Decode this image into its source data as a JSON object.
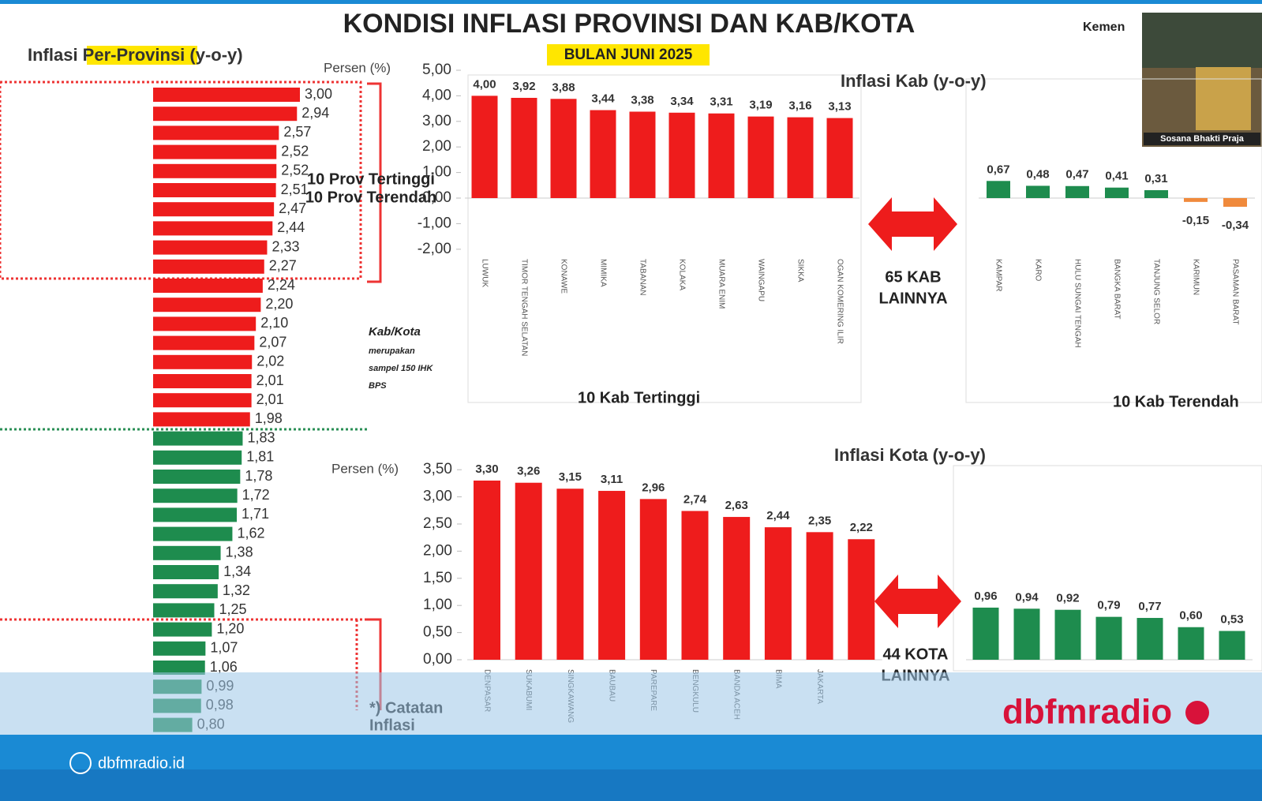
{
  "header": {
    "title": "KONDISI INFLASI PROVINSI DAN KAB/KOTA",
    "subtitle": "BULAN JUNI 2025",
    "corner": "Kemen",
    "webcam_caption": "Sosana Bhakti Praja"
  },
  "chart_data": [
    {
      "type": "hbar",
      "title": "Inflasi Per-Provinsi (y-o-y)",
      "groups": [
        {
          "color": "#ee1c1c",
          "categories": [
            null,
            null,
            null,
            null,
            null,
            null,
            null,
            null,
            null,
            null,
            null,
            null,
            null,
            null,
            null,
            null,
            null,
            null
          ],
          "values": [
            3.0,
            2.94,
            2.57,
            2.52,
            2.52,
            2.51,
            2.47,
            2.44,
            2.33,
            2.27,
            2.24,
            2.2,
            2.1,
            2.07,
            2.02,
            2.01,
            2.01,
            1.98
          ],
          "value_labels": [
            "3,00",
            "2,94",
            "2,57",
            "2,52",
            "2,52",
            "2,51",
            "2,47",
            "2,44",
            "2,33",
            "2,27",
            "2,24",
            "2,20",
            "2,10",
            "2,07",
            "2,02",
            "2,01",
            "2,01",
            "1,98"
          ]
        },
        {
          "color": "#1e8c4e",
          "categories": [
            null,
            null,
            null,
            null,
            null,
            null,
            null,
            null,
            null,
            null,
            null,
            null,
            null,
            null,
            null,
            null
          ],
          "values": [
            1.83,
            1.81,
            1.78,
            1.72,
            1.71,
            1.62,
            1.38,
            1.34,
            1.32,
            1.25,
            1.2,
            1.07,
            1.06,
            0.99,
            0.98,
            0.8
          ],
          "value_labels": [
            "1,83",
            "1,81",
            "1,78",
            "1,72",
            "1,71",
            "1,62",
            "1,38",
            "1,34",
            "1,32",
            "1,25",
            "1,20",
            "1,07",
            "1,06",
            "0,99",
            "0,98",
            "0,80"
          ]
        }
      ],
      "annotations": [
        "10 Prov Tertinggi",
        "10 Prov Terendah",
        "*) Catatan",
        "Inflasi",
        "Kab/Kota",
        "merupakan",
        "sampel 150 IHK",
        "BPS"
      ]
    },
    {
      "type": "bar",
      "title": "Inflasi Kab (y-o-y)",
      "y_label": "Persen (%)",
      "ylim": [
        -2,
        5
      ],
      "yticks": [
        {
          "value": -2,
          "label": "-2,00"
        },
        {
          "value": -1,
          "label": "-1,00"
        },
        {
          "value": 0,
          "label": "0,00"
        },
        {
          "value": 1,
          "label": "1,00"
        },
        {
          "value": 2,
          "label": "2,00"
        },
        {
          "value": 3,
          "label": "3,00"
        },
        {
          "value": 4,
          "label": "4,00"
        },
        {
          "value": 5,
          "label": "5,00"
        }
      ],
      "groups": [
        {
          "label": "10 Kab Tertinggi",
          "color": "#ee1c1c",
          "categories": [
            "LUWUK",
            "TIMOR TENGAH SELATAN",
            "KONAWE",
            "MIMIKA",
            "TABANAN",
            "KOLAKA",
            "MUARA ENIM",
            "WAINGAPU",
            "SIKKA",
            "OGAN KOMERING ILIR"
          ],
          "values": [
            4.0,
            3.92,
            3.88,
            3.44,
            3.38,
            3.34,
            3.31,
            3.19,
            3.16,
            3.13
          ],
          "value_labels": [
            "4,00",
            "3,92",
            "3,88",
            "3,44",
            "3,38",
            "3,34",
            "3,31",
            "3,19",
            "3,16",
            "3,13"
          ]
        },
        {
          "label": "10 Kab Terendah",
          "colors": [
            "#1e8c4e",
            "#1e8c4e",
            "#1e8c4e",
            "#1e8c4e",
            "#1e8c4e",
            "#f08a3c",
            "#f08a3c"
          ],
          "categories": [
            "KAMPAR",
            "KARO",
            "HULU SUNGAI TENGAH",
            "BANGKA BARAT",
            "TANJUNG SELOR",
            "KARIMUN",
            "PASAMAN BARAT"
          ],
          "values": [
            0.67,
            0.48,
            0.47,
            0.41,
            0.31,
            -0.15,
            -0.34
          ],
          "value_labels": [
            "0,67",
            "0,48",
            "0,47",
            "0,41",
            "0,31",
            "-0,15",
            "-0,34"
          ]
        }
      ],
      "annotations": [
        "65 KAB",
        "LAINNYA"
      ]
    },
    {
      "type": "bar",
      "title": "Inflasi Kota (y-o-y)",
      "y_label": "Persen (%)",
      "ylim": [
        0,
        3.5
      ],
      "yticks": [
        {
          "value": 0,
          "label": "0,00"
        },
        {
          "value": 0.5,
          "label": "0,50"
        },
        {
          "value": 1,
          "label": "1,00"
        },
        {
          "value": 1.5,
          "label": "1,50"
        },
        {
          "value": 2,
          "label": "2,00"
        },
        {
          "value": 2.5,
          "label": "2,50"
        },
        {
          "value": 3,
          "label": "3,00"
        },
        {
          "value": 3.5,
          "label": "3,50"
        }
      ],
      "groups": [
        {
          "color": "#ee1c1c",
          "categories": [
            "DENPASAR",
            "SUKABUMI",
            "SINGKAWANG",
            "BAUBAU",
            "PAREPARE",
            "BENGKULU",
            "BANDA ACEH",
            "BIMA",
            "JAKARTA",
            null
          ],
          "values": [
            3.3,
            3.26,
            3.15,
            3.11,
            2.96,
            2.74,
            2.63,
            2.44,
            2.35,
            2.22
          ],
          "value_labels": [
            "3,30",
            "3,26",
            "3,15",
            "3,11",
            "2,96",
            "2,74",
            "2,63",
            "2,44",
            "2,35",
            "2,22"
          ]
        },
        {
          "color": "#1e8c4e",
          "categories": [
            null,
            null,
            null,
            null,
            null,
            null,
            null
          ],
          "values": [
            0.96,
            0.94,
            0.92,
            0.79,
            0.77,
            0.6,
            0.53
          ],
          "value_labels": [
            "0,96",
            "0,94",
            "0,92",
            "0,79",
            "0,77",
            "0,60",
            "0,53"
          ]
        }
      ],
      "annotations": [
        "44 KOTA",
        "LAINNYA"
      ]
    }
  ],
  "footer": {
    "url": "dbfmradio.id",
    "brand": "dbfmradio"
  }
}
